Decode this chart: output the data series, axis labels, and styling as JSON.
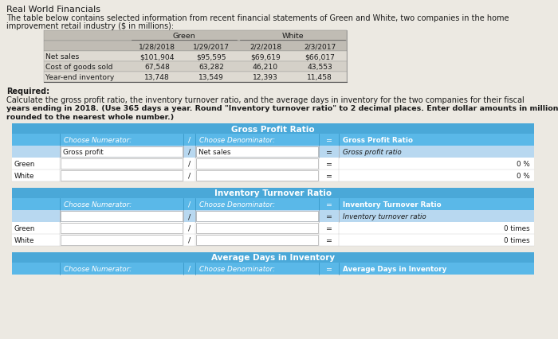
{
  "title": "Real World Financials",
  "intro_line1": "The table below contains selected information from recent financial statements of Green and White, two companies in the home",
  "intro_line2": "improvement retail industry ($ in millions):",
  "required_text": "Required:",
  "calc_line1": "Calculate the gross profit ratio, the inventory turnover ratio, and the average days in inventory for the two companies for their fiscal",
  "calc_line2": "years ending in 2018. (Use 365 days a year. Round \"Inventory turnover ratio\" to 2 decimal places. Enter dollar amounts in millions",
  "calc_line3": "rounded to the nearest whole number.)",
  "top_table": {
    "green_header": "Green",
    "white_header": "White",
    "sub_headers": [
      "",
      "1/28/2018",
      "1/29/2017",
      "2/2/2018",
      "2/3/2017"
    ],
    "rows": [
      [
        "Net sales",
        "$101,904",
        "$95,595",
        "$69,619",
        "$66,017"
      ],
      [
        "Cost of goods sold",
        "67,548",
        "63,282",
        "46,210",
        "43,553"
      ],
      [
        "Year-end inventory",
        "13,748",
        "13,549",
        "12,393",
        "11,458"
      ]
    ],
    "table_bg": "#d4d0c8",
    "header_bg": "#c0bcb4",
    "row_bg1": "#dedad2",
    "row_bg2": "#d4d0c8"
  },
  "bottom": {
    "outer_bg": "#e8e4dc",
    "blue_title_bg": "#4aa8d8",
    "blue_header_bg": "#5ab8e8",
    "white_bg": "#ffffff",
    "light_blue_bg": "#b8d8f0",
    "row_white": "#f5f5f5",
    "sections": [
      {
        "title": "Gross Profit Ratio",
        "hdr_col0": "",
        "hdr_col1": "Choose Numerator:",
        "hdr_slash": "/",
        "hdr_col3": "Choose Denominator:",
        "hdr_eq": "=",
        "hdr_col5": "Gross Profit Ratio",
        "lbl_col1": "Gross profit",
        "lbl_col3": "Net sales",
        "lbl_col5": "Gross profit ratio",
        "rows": [
          {
            "label": "Green",
            "result": "0 %"
          },
          {
            "label": "White",
            "result": "0 %"
          }
        ],
        "has_label_row": true,
        "extra_blank": true
      },
      {
        "title": "Inventory Turnover Ratio",
        "hdr_col0": "",
        "hdr_col1": "Choose Numerator:",
        "hdr_slash": "/",
        "hdr_col3": "Choose Denominator:",
        "hdr_eq": "=",
        "hdr_col5": "Inventory Turnover Ratio",
        "lbl_col1": "",
        "lbl_col3": "",
        "lbl_col5": "Inventory turnover ratio",
        "rows": [
          {
            "label": "Green",
            "result": "0 times"
          },
          {
            "label": "White",
            "result": "0 times"
          }
        ],
        "has_label_row": true,
        "extra_blank": true
      },
      {
        "title": "Average Days in Inventory",
        "hdr_col0": "",
        "hdr_col1": "Choose Numerator:",
        "hdr_slash": "/",
        "hdr_col3": "Choose Denominator:",
        "hdr_eq": "=",
        "hdr_col5": "Average Days in Inventory",
        "lbl_col1": "",
        "lbl_col3": "",
        "lbl_col5": "",
        "rows": [],
        "has_label_row": false,
        "extra_blank": false
      }
    ]
  },
  "bg_color": "#ece9e2",
  "text_color": "#1a1a1a"
}
